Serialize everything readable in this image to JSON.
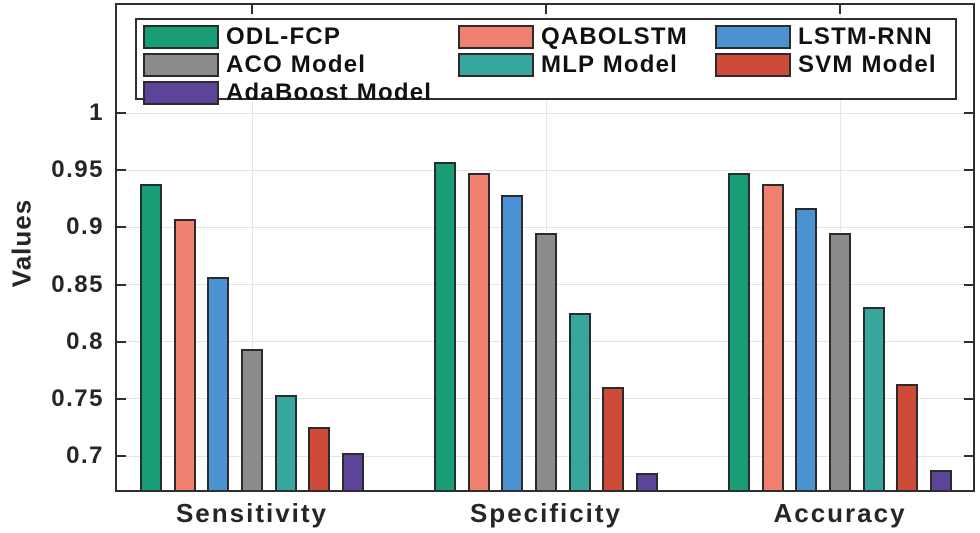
{
  "chart_data": {
    "type": "bar",
    "title": "",
    "xlabel": "",
    "ylabel": "Values",
    "categories": [
      "Sensitivity",
      "Specificity",
      "Accuracy"
    ],
    "series": [
      {
        "name": "ODL-FCP",
        "color": "#199d77",
        "values": [
          0.938,
          0.957,
          0.948
        ]
      },
      {
        "name": "QABOLSTM",
        "color": "#f08070",
        "values": [
          0.907,
          0.948,
          0.938
        ]
      },
      {
        "name": "LSTM-RNN",
        "color": "#4b92d3",
        "values": [
          0.857,
          0.928,
          0.917
        ]
      },
      {
        "name": "ACO Model",
        "color": "#8b8b8b",
        "values": [
          0.794,
          0.895,
          0.895
        ]
      },
      {
        "name": "MLP Model",
        "color": "#37a79e",
        "values": [
          0.753,
          0.825,
          0.83
        ]
      },
      {
        "name": "SVM Model",
        "color": "#cf4b39",
        "values": [
          0.725,
          0.76,
          0.763
        ]
      },
      {
        "name": "AdaBoost Model",
        "color": "#5c4499",
        "values": [
          0.703,
          0.685,
          0.688
        ]
      }
    ],
    "yticks": [
      1,
      0.95,
      0.9,
      0.85,
      0.8,
      0.75,
      0.7
    ],
    "ytick_labels": [
      "1",
      "0.95",
      "0.9",
      "0.85",
      "0.8",
      "0.75",
      "0.7"
    ],
    "ylim": [
      0.6703,
      1.0945
    ],
    "grid": true,
    "legend": {
      "position": "top-inside",
      "columns": 3,
      "order": [
        "ODL-FCP",
        "QABOLSTM",
        "LSTM-RNN",
        "ACO Model",
        "MLP Model",
        "SVM Model",
        "AdaBoost Model"
      ]
    },
    "colors": {
      "axis": "#2f2f2f",
      "grid": "#e4e4e4",
      "bar_edge": "#2b2b2b",
      "text": "#262626",
      "background": "#ffffff"
    }
  }
}
